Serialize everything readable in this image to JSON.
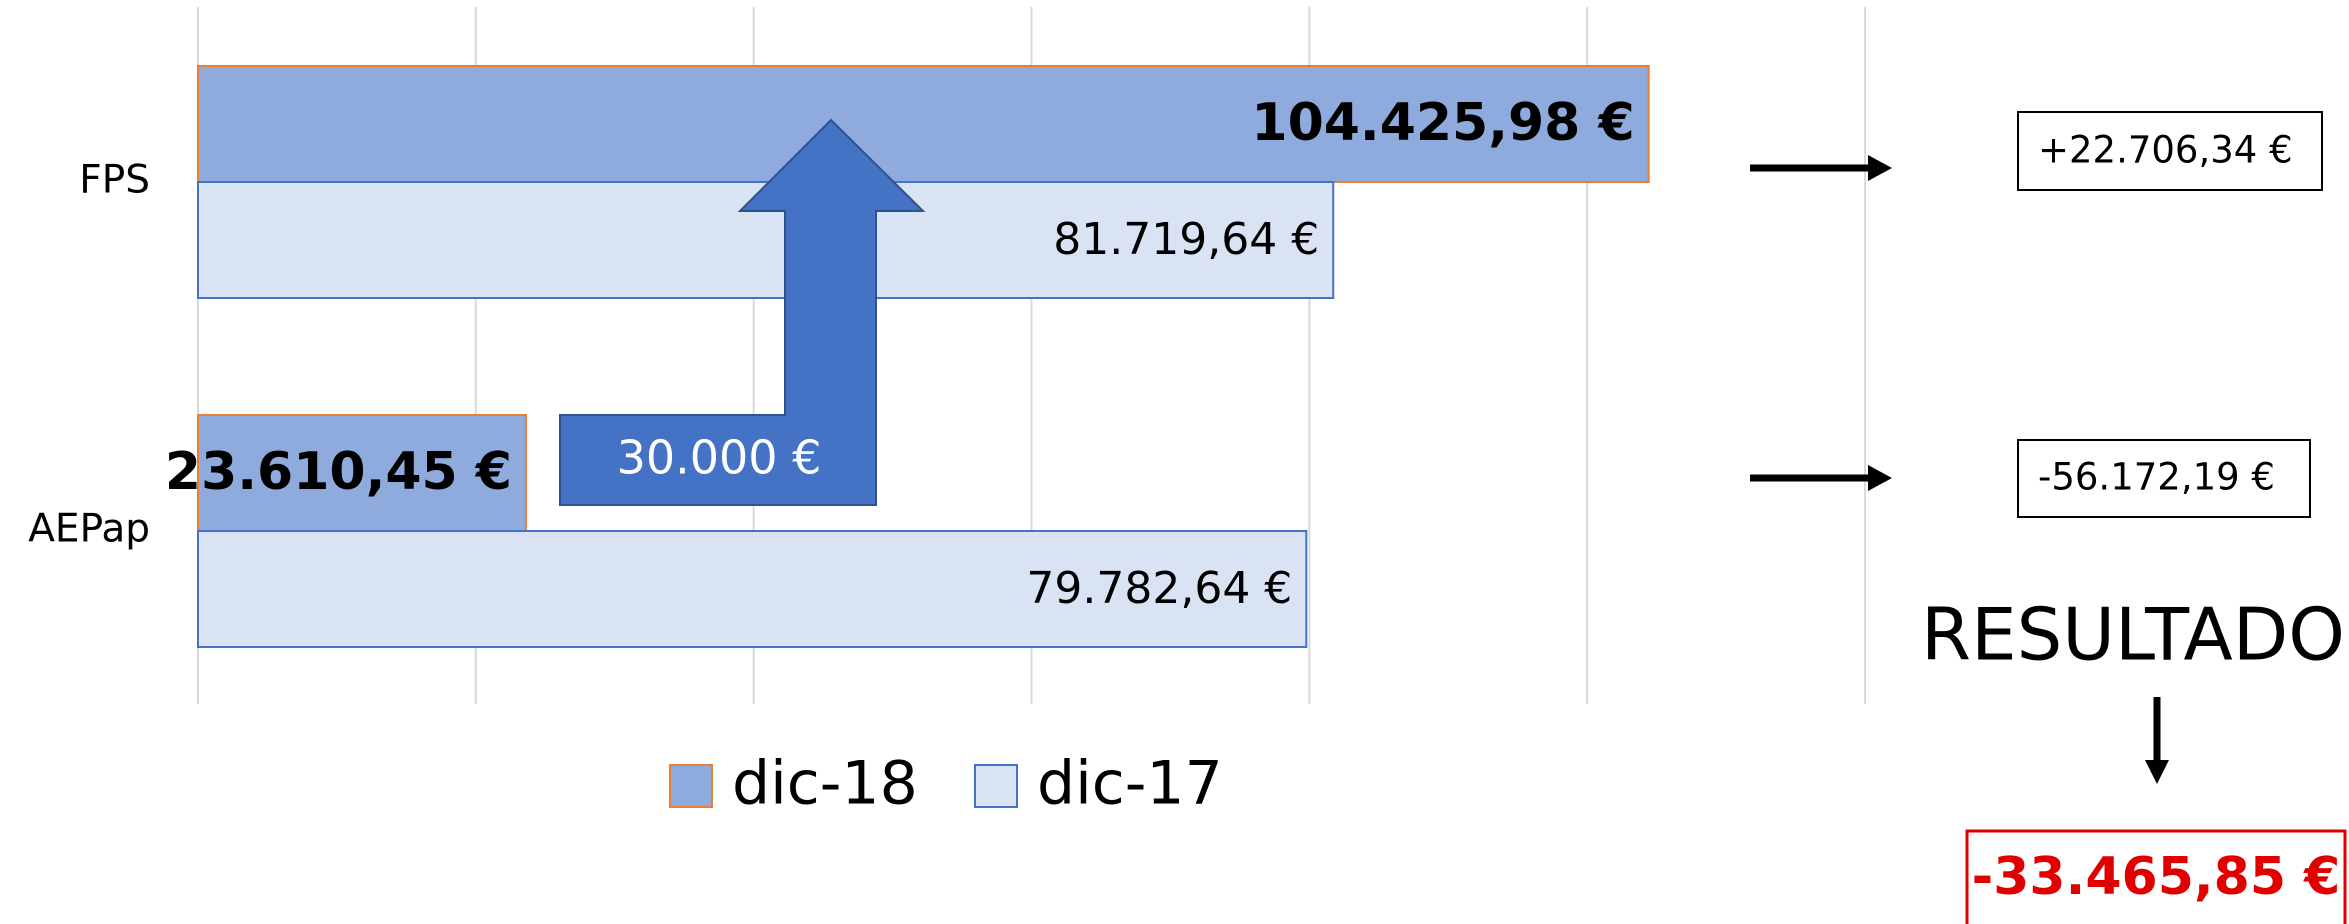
{
  "chart_data": {
    "type": "barh",
    "categories": [
      "FPS",
      "AEPap"
    ],
    "series": [
      {
        "name": "dic-18",
        "color": "#8faadc",
        "border": "#ed7d31",
        "values": [
          104425.98,
          23610.45
        ],
        "value_labels": [
          "104.425,98 €",
          "23.610,45 €"
        ]
      },
      {
        "name": "dic-17",
        "color": "#dae3f3",
        "border": "#4472c4",
        "values": [
          81719.64,
          79782.64
        ],
        "value_labels": [
          "81.719,64 €",
          "79.782,64 €"
        ]
      }
    ],
    "xlim": [
      0,
      120000
    ],
    "xticks": [
      0,
      20000,
      40000,
      60000,
      80000,
      100000,
      120000
    ],
    "grid": true,
    "legend": "bottom",
    "annotations": {
      "arrow_label": "30.000 €",
      "differences": [
        "+22.706,34 €",
        "-56.172,19 €"
      ],
      "result_title": "RESULTADO",
      "result": "-33.465,85 €"
    }
  }
}
